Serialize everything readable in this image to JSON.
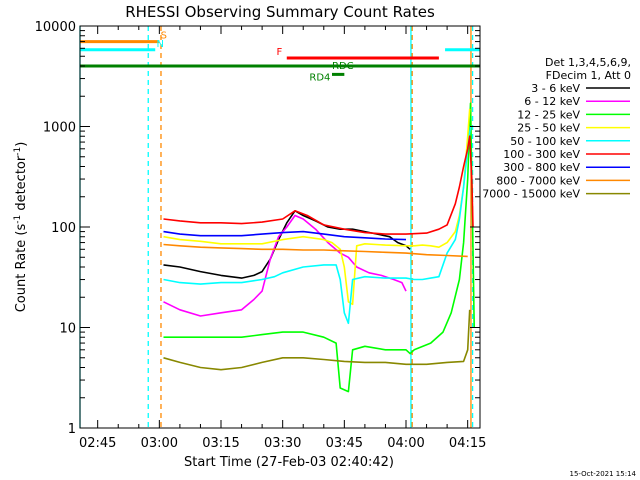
{
  "chart_data": {
    "type": "line",
    "title": "RHESSI Observing Summary Count Rates",
    "xlabel": "Start Time (27-Feb-03 02:40:42)",
    "ylabel": "Count Rate (s⁻¹ detector⁻¹)",
    "ylabel_main": "Count Rate (s",
    "ylabel_mid": " detector",
    "ylabel_end": ")",
    "ylabel_sup": "-1",
    "yscale": "log",
    "ylim": [
      1,
      10000
    ],
    "xlim_minutes": [
      40.7,
      138
    ],
    "x_ticks": [
      {
        "label": "02:45",
        "minute": 45
      },
      {
        "label": "03:00",
        "minute": 60
      },
      {
        "label": "03:15",
        "minute": 75
      },
      {
        "label": "03:30",
        "minute": 90
      },
      {
        "label": "03:45",
        "minute": 105
      },
      {
        "label": "04:00",
        "minute": 120
      },
      {
        "label": "04:15",
        "minute": 135
      }
    ],
    "y_ticks": [
      {
        "label": "1",
        "value": 1
      },
      {
        "label": "10",
        "value": 10
      },
      {
        "label": "100",
        "value": 100
      },
      {
        "label": "1000",
        "value": 1000
      },
      {
        "label": "10000",
        "value": 10000
      }
    ],
    "legend_title": [
      "Det 1,3,4,5,6,9,",
      "FDecim 1, Att 0"
    ],
    "legend_placement": "right",
    "footer": "15-Oct-2021 15:14",
    "series": [
      {
        "name": "3 - 6 keV",
        "color": "#000000",
        "points": [
          [
            61,
            42
          ],
          [
            65,
            40
          ],
          [
            70,
            36
          ],
          [
            75,
            33
          ],
          [
            80,
            31
          ],
          [
            83,
            33
          ],
          [
            85,
            36
          ],
          [
            87,
            48
          ],
          [
            89,
            75
          ],
          [
            91,
            110
          ],
          [
            93,
            145
          ],
          [
            95,
            130
          ],
          [
            98,
            115
          ],
          [
            101,
            100
          ],
          [
            104,
            95
          ],
          [
            107,
            95
          ],
          [
            110,
            90
          ],
          [
            113,
            85
          ],
          [
            116,
            80
          ],
          [
            118,
            70
          ],
          [
            120,
            65
          ],
          [
            121,
            60
          ]
        ]
      },
      {
        "name": "6 - 12 keV",
        "color": "#ff00ff",
        "points": [
          [
            61,
            18
          ],
          [
            65,
            15
          ],
          [
            70,
            13
          ],
          [
            75,
            14
          ],
          [
            80,
            15
          ],
          [
            83,
            19
          ],
          [
            85,
            23
          ],
          [
            87,
            48
          ],
          [
            89,
            80
          ],
          [
            91,
            100
          ],
          [
            93,
            130
          ],
          [
            95,
            120
          ],
          [
            98,
            95
          ],
          [
            101,
            70
          ],
          [
            104,
            55
          ],
          [
            106,
            50
          ],
          [
            108,
            40
          ],
          [
            111,
            35
          ],
          [
            114,
            33
          ],
          [
            117,
            30
          ],
          [
            119,
            28
          ],
          [
            120,
            23
          ]
        ]
      },
      {
        "name": "12 - 25 keV",
        "color": "#00ff00",
        "points": [
          [
            61,
            8
          ],
          [
            70,
            8
          ],
          [
            80,
            8
          ],
          [
            85,
            8.5
          ],
          [
            90,
            9
          ],
          [
            95,
            9
          ],
          [
            100,
            8
          ],
          [
            103,
            7
          ],
          [
            104,
            2.5
          ],
          [
            106,
            2.3
          ],
          [
            107,
            6
          ],
          [
            110,
            6.5
          ],
          [
            115,
            6
          ],
          [
            120,
            6
          ],
          [
            121,
            5.5
          ],
          [
            122,
            6
          ],
          [
            126,
            7
          ],
          [
            129,
            9
          ],
          [
            131,
            14
          ],
          [
            133,
            30
          ],
          [
            134,
            70
          ],
          [
            135,
            300
          ],
          [
            135.7,
            1700
          ],
          [
            136.3,
            60
          ],
          [
            136.6,
            10
          ]
        ]
      },
      {
        "name": "25 - 50 keV",
        "color": "#ffff00",
        "points": [
          [
            61,
            80
          ],
          [
            65,
            75
          ],
          [
            70,
            72
          ],
          [
            75,
            68
          ],
          [
            80,
            68
          ],
          [
            85,
            68
          ],
          [
            90,
            75
          ],
          [
            95,
            80
          ],
          [
            100,
            75
          ],
          [
            102,
            70
          ],
          [
            104,
            60
          ],
          [
            105,
            40
          ],
          [
            106,
            18
          ],
          [
            107,
            17
          ],
          [
            108,
            65
          ],
          [
            110,
            68
          ],
          [
            115,
            66
          ],
          [
            120,
            65
          ],
          [
            122,
            65
          ],
          [
            124,
            66
          ],
          [
            126,
            65
          ],
          [
            128,
            63
          ],
          [
            130,
            70
          ],
          [
            132,
            90
          ],
          [
            133,
            130
          ],
          [
            134,
            250
          ],
          [
            135,
            800
          ],
          [
            135.5,
            1500
          ]
        ]
      },
      {
        "name": "50 - 100 keV",
        "color": "#00ffff",
        "points": [
          [
            61,
            30
          ],
          [
            65,
            28
          ],
          [
            70,
            27
          ],
          [
            75,
            28
          ],
          [
            80,
            28
          ],
          [
            85,
            30
          ],
          [
            88,
            32
          ],
          [
            90,
            35
          ],
          [
            95,
            40
          ],
          [
            100,
            42
          ],
          [
            103,
            42
          ],
          [
            104,
            30
          ],
          [
            105,
            14
          ],
          [
            106,
            11
          ],
          [
            107,
            30
          ],
          [
            110,
            32
          ],
          [
            115,
            31
          ],
          [
            120,
            31
          ],
          [
            122,
            30
          ],
          [
            124,
            30
          ],
          [
            126,
            31
          ],
          [
            128,
            32
          ],
          [
            130,
            55
          ],
          [
            132,
            75
          ],
          [
            133,
            120
          ],
          [
            134,
            250
          ],
          [
            135,
            600
          ],
          [
            135.7,
            1000
          ]
        ]
      },
      {
        "name": "100 - 300 keV",
        "color": "#ff0000",
        "points": [
          [
            61,
            120
          ],
          [
            65,
            115
          ],
          [
            70,
            110
          ],
          [
            75,
            110
          ],
          [
            80,
            108
          ],
          [
            85,
            112
          ],
          [
            90,
            120
          ],
          [
            93,
            145
          ],
          [
            96,
            130
          ],
          [
            100,
            105
          ],
          [
            105,
            95
          ],
          [
            110,
            88
          ],
          [
            115,
            85
          ],
          [
            120,
            85
          ],
          [
            125,
            87
          ],
          [
            128,
            95
          ],
          [
            130,
            105
          ],
          [
            132,
            170
          ],
          [
            133,
            250
          ],
          [
            134,
            400
          ],
          [
            135,
            600
          ],
          [
            135.5,
            800
          ],
          [
            136,
            300
          ],
          [
            136.3,
            100
          ]
        ]
      },
      {
        "name": "300 - 800 keV",
        "color": "#0000ff",
        "points": [
          [
            61,
            90
          ],
          [
            65,
            85
          ],
          [
            70,
            82
          ],
          [
            75,
            82
          ],
          [
            80,
            82
          ],
          [
            85,
            85
          ],
          [
            90,
            88
          ],
          [
            95,
            90
          ],
          [
            100,
            85
          ],
          [
            105,
            80
          ],
          [
            110,
            78
          ],
          [
            115,
            76
          ],
          [
            120,
            75
          ]
        ]
      },
      {
        "name": "800 - 7000 keV",
        "color": "#ff8800",
        "points": [
          [
            61,
            67
          ],
          [
            65,
            65
          ],
          [
            70,
            63
          ],
          [
            75,
            62
          ],
          [
            80,
            61
          ],
          [
            85,
            60
          ],
          [
            90,
            60
          ],
          [
            95,
            59
          ],
          [
            100,
            59
          ],
          [
            105,
            58
          ],
          [
            110,
            57
          ],
          [
            115,
            56
          ],
          [
            120,
            55
          ],
          [
            125,
            53
          ],
          [
            130,
            52
          ],
          [
            135,
            51
          ]
        ]
      },
      {
        "name": "7000 - 15000 keV",
        "color": "#888800",
        "points": [
          [
            61,
            5
          ],
          [
            65,
            4.5
          ],
          [
            70,
            4
          ],
          [
            75,
            3.8
          ],
          [
            80,
            4
          ],
          [
            85,
            4.5
          ],
          [
            90,
            5
          ],
          [
            95,
            5
          ],
          [
            100,
            4.8
          ],
          [
            105,
            4.6
          ],
          [
            110,
            4.5
          ],
          [
            115,
            4.5
          ],
          [
            120,
            4.3
          ],
          [
            125,
            4.3
          ],
          [
            130,
            4.5
          ],
          [
            134,
            4.6
          ],
          [
            135,
            6
          ],
          [
            135.5,
            15
          ]
        ]
      }
    ],
    "flags": [
      {
        "label": "S",
        "color": "#ff8800",
        "level": 7000,
        "segments": [
          [
            40.7,
            60
          ]
        ],
        "label_minute": 60.3
      },
      {
        "label": "N",
        "color": "#00ffff",
        "level": 5800,
        "segments": [
          [
            40.7,
            59
          ],
          [
            129.5,
            138
          ]
        ],
        "label_minute": 59.3
      },
      {
        "label": "F",
        "color": "#ff0000",
        "level": 4800,
        "segments": [
          [
            91,
            128
          ]
        ],
        "label_minute": 88.5
      },
      {
        "label": "RDC",
        "color": "#008000",
        "level": 4000,
        "segments": [
          [
            40.7,
            138
          ]
        ],
        "label_minute": 102
      },
      {
        "label": "RD4",
        "color": "#008000",
        "level": 3300,
        "segments": [
          [
            102,
            105
          ]
        ],
        "label_minute": 96.5
      }
    ],
    "vlines": [
      {
        "minute": 40.7,
        "color": "#00ffff",
        "style": "solid"
      },
      {
        "minute": 57.3,
        "color": "#00ffff",
        "style": "dashed"
      },
      {
        "minute": 60.4,
        "color": "#ff8800",
        "style": "dashed"
      },
      {
        "minute": 121.2,
        "color": "#00ffff",
        "style": "solid"
      },
      {
        "minute": 121.5,
        "color": "#ff8800",
        "style": "dashed"
      },
      {
        "minute": 135.8,
        "color": "#ff8800",
        "style": "solid"
      },
      {
        "minute": 136.2,
        "color": "#00ffff",
        "style": "dashed"
      }
    ]
  }
}
